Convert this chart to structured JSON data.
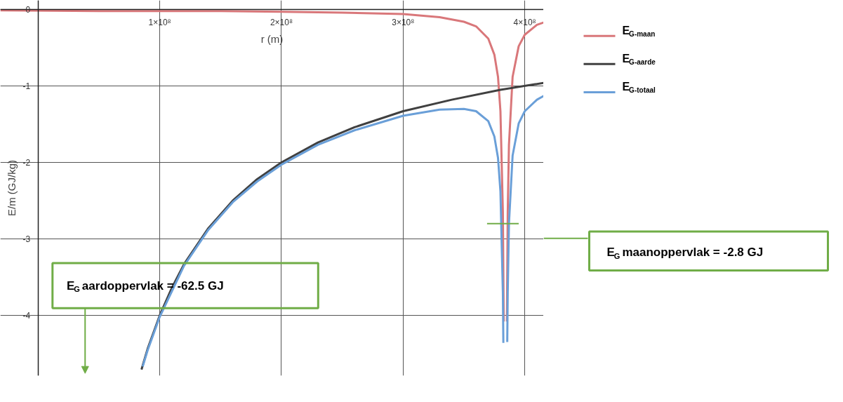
{
  "chart_data": {
    "type": "line",
    "xlabel": "r (m)",
    "ylabel": "E/m (GJ/kg)",
    "xlim": [
      -31000000,
      415500000
    ],
    "ylim": [
      -4.79,
      0.12
    ],
    "xticks": [
      {
        "value": 0,
        "label": null
      },
      {
        "value": 100000000,
        "label": "1×10⁸"
      },
      {
        "value": 200000000,
        "label": "2×10⁸"
      },
      {
        "value": 300000000,
        "label": "3×10⁸"
      },
      {
        "value": 400000000,
        "label": "4×10⁸"
      }
    ],
    "yticks": [
      0,
      -1,
      -2,
      -3,
      -4
    ],
    "grid": true,
    "legend": "right",
    "line_style": "solid",
    "marker": "none",
    "series": [
      {
        "name": "E$_{G-maan}$",
        "color": "#d9777a",
        "x": [
          -31000000,
          50000000,
          100000000,
          150000000,
          200000000,
          250000000,
          300000000,
          330000000,
          350000000,
          360000000,
          370000000,
          375000000,
          378000000,
          380000000,
          382000000,
          382700000,
          null,
          385300000,
          386000000,
          387000000,
          390000000,
          395000000,
          400000000,
          410000000,
          415500000
        ],
        "values": [
          -0.01,
          -0.02,
          -0.02,
          -0.02,
          -0.03,
          -0.04,
          -0.06,
          -0.1,
          -0.16,
          -0.22,
          -0.38,
          -0.59,
          -0.88,
          -1.33,
          -2.65,
          -4.08,
          null,
          -4.08,
          -2.65,
          -1.77,
          -0.88,
          -0.48,
          -0.33,
          -0.2,
          -0.17
        ]
      },
      {
        "name": "E$_{G-aarde}$",
        "color": "#404040",
        "x": [
          85000000,
          90000000,
          100000000,
          110000000,
          120000000,
          140000000,
          160000000,
          180000000,
          200000000,
          230000000,
          260000000,
          300000000,
          340000000,
          380000000,
          415500000
        ],
        "values": [
          -4.71,
          -4.44,
          -4.0,
          -3.64,
          -3.33,
          -2.86,
          -2.5,
          -2.22,
          -2.0,
          -1.74,
          -1.54,
          -1.33,
          -1.18,
          -1.05,
          -0.96
        ]
      },
      {
        "name": "E$_{G-totaal}$",
        "color": "#6a9fd8",
        "x": [
          86000000,
          90000000,
          100000000,
          120000000,
          140000000,
          160000000,
          180000000,
          200000000,
          230000000,
          260000000,
          300000000,
          330000000,
          350000000,
          360000000,
          370000000,
          375000000,
          378000000,
          380000000,
          382000000,
          382400000,
          null,
          385600000,
          386000000,
          387000000,
          390000000,
          395000000,
          400000000,
          410000000,
          415500000
        ],
        "values": [
          -4.67,
          -4.46,
          -4.02,
          -3.35,
          -2.88,
          -2.52,
          -2.25,
          -2.03,
          -1.77,
          -1.58,
          -1.39,
          -1.31,
          -1.3,
          -1.33,
          -1.46,
          -1.66,
          -1.94,
          -2.38,
          -3.7,
          -4.36,
          null,
          -4.35,
          -3.69,
          -2.8,
          -1.91,
          -1.49,
          -1.33,
          -1.18,
          -1.13
        ]
      },
      {
        "color": "#70ad47",
        "x": [
          369000000,
          395000000
        ],
        "values": [
          -2.8,
          -2.8
        ]
      }
    ],
    "annotations": [
      "E$_{G}$ aardoppervlak = -62.5 GJ",
      "E$_{G}$ maanoppervlak = -2.8 GJ"
    ]
  }
}
